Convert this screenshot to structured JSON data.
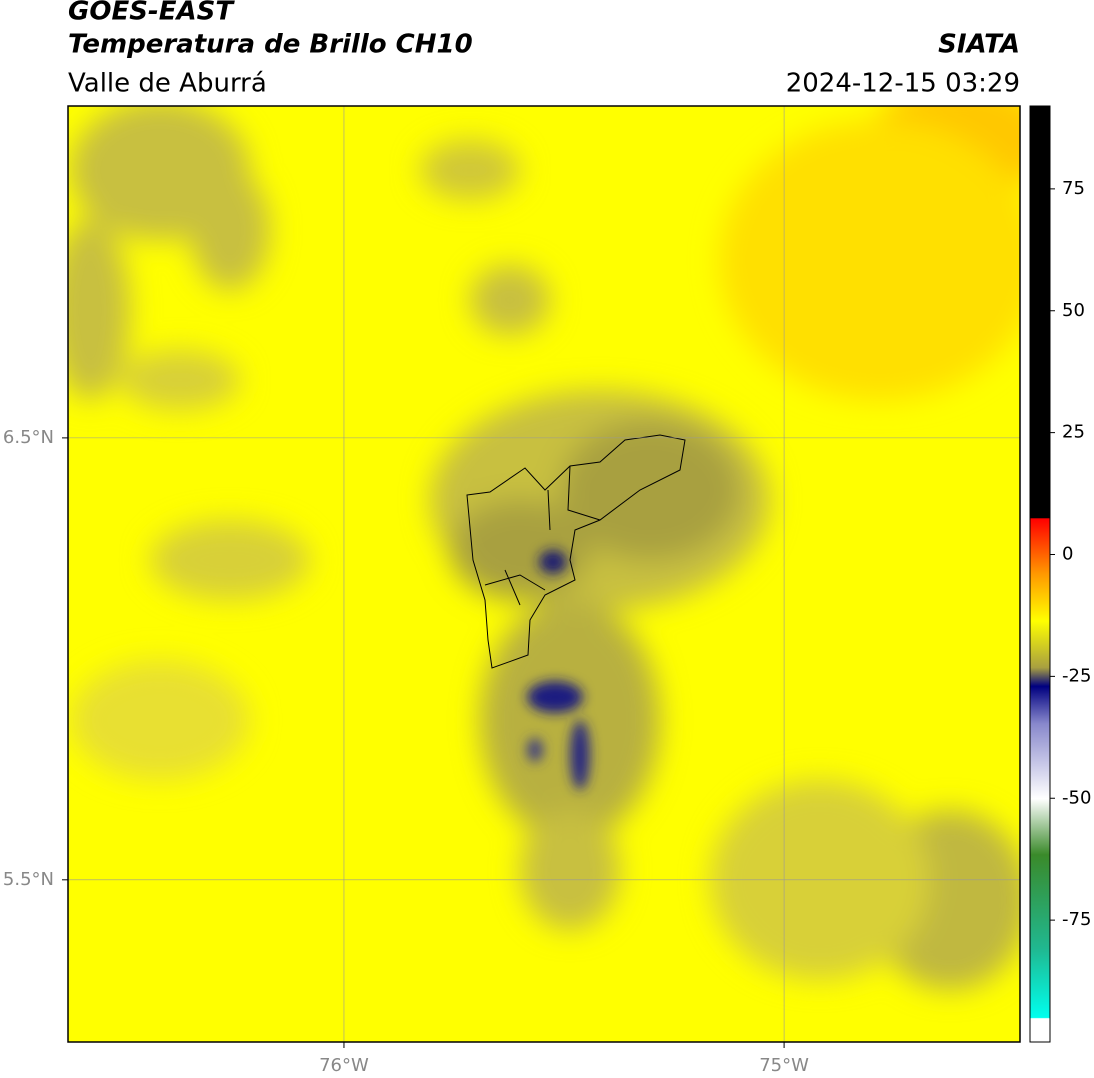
{
  "map": {
    "title": "GOES-EAST",
    "subtitle": "Temperatura de Brillo CH10",
    "region": "Valle de Aburrá",
    "source": "SIATA",
    "datetime": "2024-12-15 03:29",
    "xlim": [
      -76.627,
      -74.464
    ],
    "ylim": [
      5.133,
      7.251
    ],
    "xticks": [
      {
        "value": -76,
        "label": "76°W"
      },
      {
        "value": -75,
        "label": "75°W"
      }
    ],
    "yticks": [
      {
        "value": 6.5,
        "label": "6.5°N"
      },
      {
        "value": 5.5,
        "label": "5.5°N"
      }
    ],
    "grid": true,
    "colorbar": {
      "ylim": [
        -100,
        92
      ],
      "yticks": [
        75,
        50,
        25,
        0,
        -25,
        -50,
        -75
      ]
    }
  }
}
